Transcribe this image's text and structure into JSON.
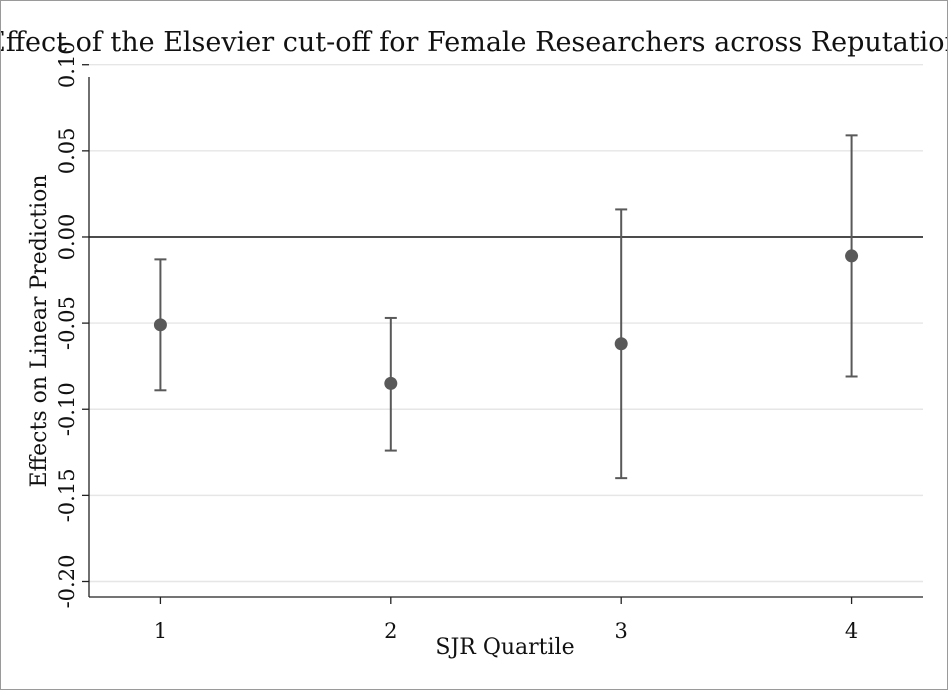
{
  "chart_data": {
    "type": "scatter",
    "title": "Effect of the Elsevier cut-off for Female Researchers across Reputation",
    "xlabel": "SJR Quartile",
    "ylabel": "Effects on Linear Prediction",
    "x_ticks": [
      "1",
      "2",
      "3",
      "4"
    ],
    "y_ticks": [
      "0.10",
      "0.05",
      "0.00",
      "-0.05",
      "-0.10",
      "-0.15",
      "-0.20"
    ],
    "ylim": [
      -0.209,
      0.101
    ],
    "xlim": [
      0.69,
      4.31
    ],
    "grid": true,
    "reference_line_y": 0.0,
    "series": [
      {
        "points": [
          {
            "x": 1,
            "y": -0.051,
            "ci_low": -0.089,
            "ci_high": -0.013
          },
          {
            "x": 2,
            "y": -0.085,
            "ci_low": -0.124,
            "ci_high": -0.047
          },
          {
            "x": 3,
            "y": -0.062,
            "ci_low": -0.14,
            "ci_high": 0.016
          },
          {
            "x": 4,
            "y": -0.011,
            "ci_low": -0.081,
            "ci_high": 0.059
          }
        ]
      }
    ],
    "colors": {
      "marker": "#595959",
      "grid": "#e6e6e6",
      "axis": "#222222",
      "reference_line": "#333333"
    }
  }
}
